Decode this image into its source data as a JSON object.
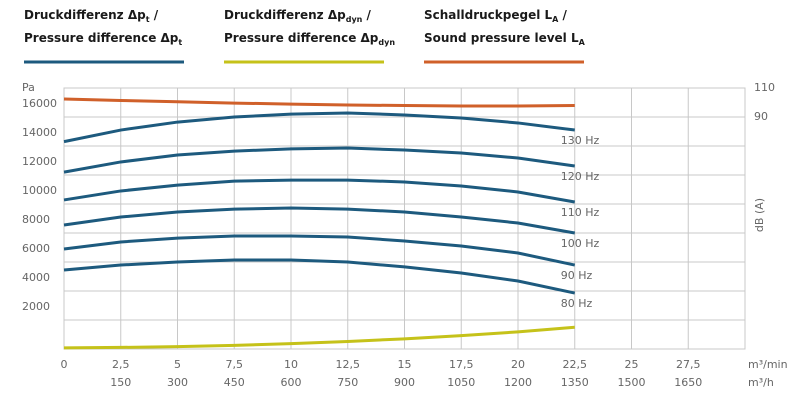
{
  "chart_data": {
    "type": "line",
    "legend": [
      {
        "color": "#1d5a7e",
        "lines": [
          {
            "text": "Druckdifferenz Δp",
            "sub": "t",
            "after": " /"
          },
          {
            "text": "Pressure difference Δp",
            "sub": "t"
          }
        ]
      },
      {
        "color": "#c5c21a",
        "lines": [
          {
            "text": "Druckdifferenz Δp",
            "sub": "dyn",
            "after": " /"
          },
          {
            "text": "Pressure difference Δp",
            "sub": "dyn"
          }
        ]
      },
      {
        "color": "#d0602a",
        "lines": [
          {
            "text": "Schalldruckpegel L",
            "sub": "A",
            "after": " /"
          },
          {
            "text": "Sound pressure level L",
            "sub": "A"
          }
        ]
      }
    ],
    "ylabel": "Pa",
    "y2label": "dB (A)",
    "xlabel": "m³/min",
    "x2label": "m³/h",
    "x": [
      0,
      2.5,
      5,
      7.5,
      10,
      12.5,
      15,
      17.5,
      20,
      22.5
    ],
    "xlim": [
      0,
      30
    ],
    "xticks": [
      0,
      {
        "value": 2.5,
        "label": "2,5"
      },
      5,
      {
        "value": 7.5,
        "label": "7,5"
      },
      10,
      {
        "value": 12.5,
        "label": "12,5"
      },
      15,
      {
        "value": 17.5,
        "label": "17,5"
      },
      20,
      {
        "value": 22.5,
        "label": "22,5"
      },
      25,
      {
        "value": 27.5,
        "label": "27,5"
      }
    ],
    "x2lim": [
      0,
      1800
    ],
    "x2ticks": [
      150,
      300,
      450,
      600,
      750,
      900,
      1050,
      1200,
      1350,
      1500,
      1650
    ],
    "ylim": [
      0,
      18000
    ],
    "yticks": [
      2000,
      4000,
      6000,
      8000,
      10000,
      12000,
      14000,
      16000
    ],
    "y2lim": [
      -70,
      110
    ],
    "y2ticks": [
      90,
      110
    ],
    "grid": true,
    "series": [
      {
        "label": "130 Hz",
        "color": "#1d5a7e",
        "values": [
          14300,
          15100,
          15650,
          16000,
          16200,
          16280,
          16140,
          15930,
          15590,
          15100
        ]
      },
      {
        "label": "120 Hz",
        "color": "#1d5a7e",
        "values": [
          12200,
          12900,
          13380,
          13650,
          13800,
          13860,
          13720,
          13520,
          13170,
          12620
        ]
      },
      {
        "label": "110 Hz",
        "color": "#1d5a7e",
        "values": [
          10280,
          10900,
          11300,
          11580,
          11650,
          11650,
          11520,
          11240,
          10830,
          10140
        ]
      },
      {
        "label": "100 Hz",
        "color": "#1d5a7e",
        "values": [
          8550,
          9100,
          9450,
          9650,
          9720,
          9650,
          9450,
          9100,
          8690,
          8000
        ]
      },
      {
        "label": "90 Hz",
        "color": "#1d5a7e",
        "values": [
          6900,
          7380,
          7650,
          7790,
          7790,
          7720,
          7450,
          7100,
          6620,
          5790
        ]
      },
      {
        "label": "80 Hz",
        "color": "#1d5a7e",
        "values": [
          5450,
          5790,
          6000,
          6140,
          6140,
          6000,
          5660,
          5240,
          4690,
          3860
        ]
      },
      {
        "color": "#c5c21a",
        "values": [
          80,
          110,
          160,
          250,
          370,
          520,
          700,
          920,
          1180,
          1500
        ]
      },
      {
        "color": "#d0602a",
        "axis": "y2",
        "values": [
          102.4,
          101.4,
          100.5,
          99.6,
          98.9,
          98.3,
          97.9,
          97.6,
          97.6,
          97.9
        ]
      }
    ]
  }
}
